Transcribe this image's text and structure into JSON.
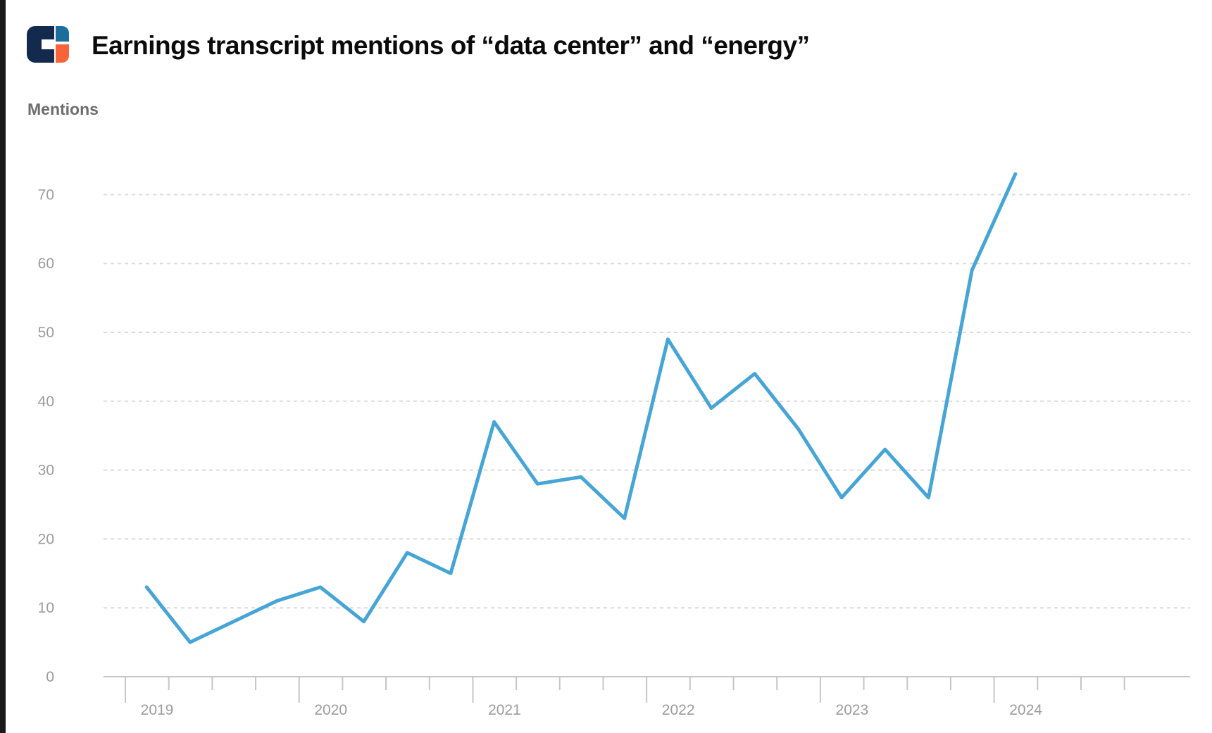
{
  "window": {
    "left_edge_color": "#1a1a1c"
  },
  "header": {
    "logo": {
      "name": "cbinsights-logo",
      "navy": "#14294e",
      "blue": "#1c6d9c",
      "orange": "#f9633a"
    }
  },
  "chart_data": {
    "type": "line",
    "title": "Earnings transcript mentions of “data center” and “energy”",
    "ylabel": "Mentions",
    "xlabel": "",
    "x": [
      "2019 Q1",
      "2019 Q2",
      "2019 Q3",
      "2019 Q4",
      "2020 Q1",
      "2020 Q2",
      "2020 Q3",
      "2020 Q4",
      "2021 Q1",
      "2021 Q2",
      "2021 Q3",
      "2021 Q4",
      "2022 Q1",
      "2022 Q2",
      "2022 Q3",
      "2022 Q4",
      "2023 Q1",
      "2023 Q2",
      "2023 Q3",
      "2023 Q4",
      "2024 Q1"
    ],
    "series": [
      {
        "name": "Mentions",
        "color": "#45a5d6",
        "values": [
          13,
          5,
          8,
          11,
          13,
          8,
          18,
          15,
          37,
          28,
          29,
          23,
          49,
          39,
          44,
          36,
          26,
          33,
          26,
          59,
          73
        ]
      }
    ],
    "yticks": [
      0,
      10,
      20,
      30,
      40,
      50,
      60,
      70
    ],
    "year_labels": [
      "2019",
      "2020",
      "2021",
      "2022",
      "2023",
      "2024"
    ],
    "ylim": [
      0,
      75
    ],
    "grid": "horizontal-dashed",
    "legend": "none",
    "line_color": "#45a5d6",
    "grid_color": "#dadada",
    "axis_color": "#c6c6c6",
    "label_color": "#9c9c9c"
  }
}
